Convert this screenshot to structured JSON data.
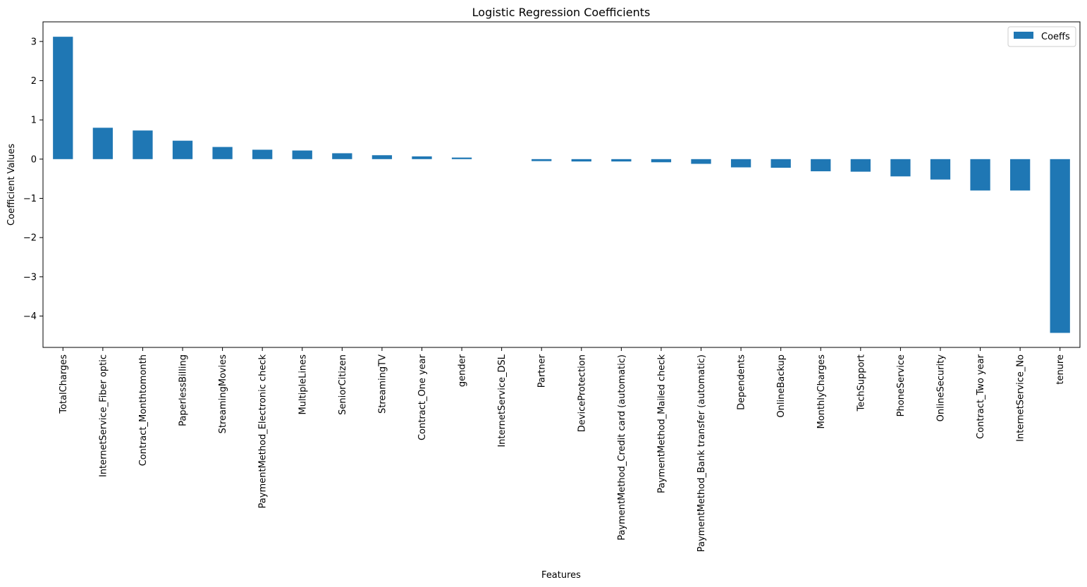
{
  "chart_data": {
    "type": "bar",
    "title": "Logistic Regression Coefficients",
    "xlabel": "Features",
    "ylabel": "Coefficient Values",
    "ylim": [
      -4.8,
      3.5
    ],
    "yticks": [
      3,
      2,
      1,
      0,
      -1,
      -2,
      -3,
      -4
    ],
    "ytick_labels": [
      "3",
      "2",
      "1",
      "0",
      "−1",
      "−2",
      "−3",
      "−4"
    ],
    "grid": false,
    "legend_position": "top-right",
    "bar_color": "#1f77b4",
    "categories": [
      "TotalCharges",
      "InternetService_Fiber optic",
      "Contract_Monthtomonth",
      "PaperlessBilling",
      "StreamingMovies",
      "PaymentMethod_Electronic check",
      "MultipleLines",
      "SeniorCitizen",
      "StreamingTV",
      "Contract_One year",
      "gender",
      "InternetService_DSL",
      "Partner",
      "DeviceProtection",
      "PaymentMethod_Credit card (automatic)",
      "PaymentMethod_Mailed check",
      "PaymentMethod_Bank transfer (automatic)",
      "Dependents",
      "OnlineBackup",
      "MonthlyCharges",
      "TechSupport",
      "PhoneService",
      "OnlineSecurity",
      "Contract_Two year",
      "InternetService_No",
      "tenure"
    ],
    "series": [
      {
        "name": "Coeffs",
        "values": [
          3.12,
          0.8,
          0.73,
          0.47,
          0.31,
          0.24,
          0.22,
          0.15,
          0.1,
          0.07,
          0.04,
          0.0,
          -0.05,
          -0.06,
          -0.06,
          -0.08,
          -0.12,
          -0.21,
          -0.22,
          -0.31,
          -0.32,
          -0.44,
          -0.52,
          -0.8,
          -0.8,
          -4.43
        ]
      }
    ]
  }
}
